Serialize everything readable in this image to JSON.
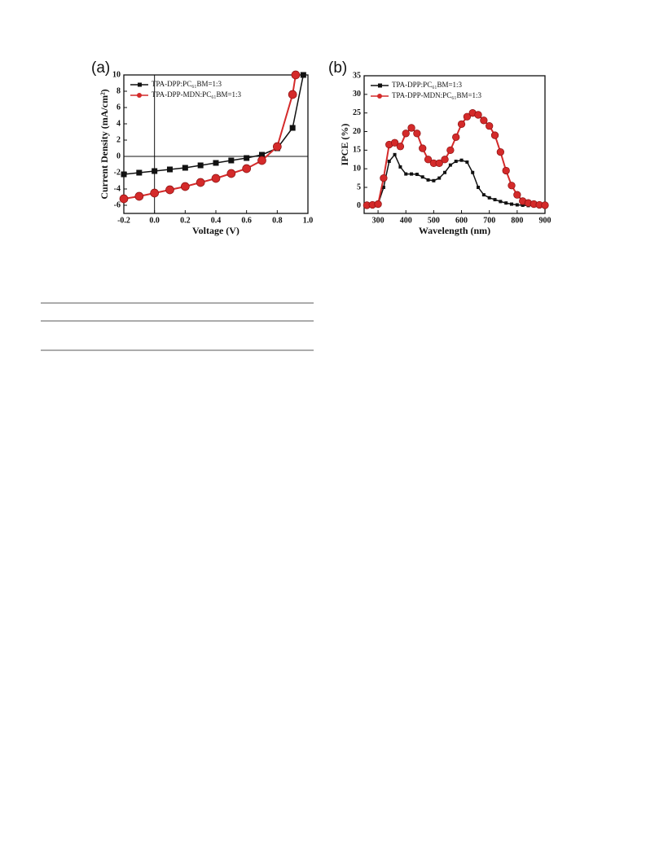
{
  "chart_data": [
    {
      "type": "line",
      "title": "(a)",
      "x_label": "Voltage (V)",
      "y_label": "Current Density (mA/cm²)",
      "xlim": [
        -0.2,
        1.0
      ],
      "ylim": [
        -7,
        10
      ],
      "xticks": [
        -0.2,
        {
          "value": 0,
          "label": "0.0"
        },
        0.2,
        0.4,
        0.6,
        0.8,
        {
          "value": 1,
          "label": "1.0"
        }
      ],
      "yticks": [
        -6,
        -4,
        -2,
        0,
        2,
        4,
        6,
        8,
        10
      ],
      "legend": "upper left",
      "series": [
        {
          "name": "TPA-DPP:PC₆₁BM=1:3",
          "color": "#111111",
          "marker": "square",
          "x": [
            -0.2,
            -0.1,
            0,
            0.1,
            0.2,
            0.3,
            0.4,
            0.5,
            0.6,
            0.7,
            0.8,
            0.9,
            0.97
          ],
          "values": [
            -2.2,
            -2.0,
            -1.8,
            -1.6,
            -1.4,
            -1.1,
            -0.8,
            -0.5,
            -0.2,
            0.2,
            1.0,
            3.5,
            10
          ]
        },
        {
          "name": "TPA-DPP-MDN:PC₆₁BM=1:3",
          "color": "#d42a2a",
          "marker": "circle",
          "x": [
            -0.2,
            -0.1,
            0,
            0.1,
            0.2,
            0.3,
            0.4,
            0.5,
            0.6,
            0.7,
            0.8,
            0.9,
            0.92
          ],
          "values": [
            -5.2,
            -4.9,
            -4.5,
            -4.1,
            -3.7,
            -3.2,
            -2.7,
            -2.1,
            -1.5,
            -0.5,
            1.2,
            7.6,
            10
          ]
        }
      ]
    },
    {
      "type": "line",
      "title": "(b)",
      "x_label": "Wavelength (nm)",
      "y_label": "IPCE (%)",
      "xlim": [
        250,
        900
      ],
      "ylim": [
        -2,
        35
      ],
      "xticks": [
        300,
        400,
        500,
        600,
        700,
        800,
        900
      ],
      "yticks": [
        0,
        5,
        10,
        15,
        20,
        25,
        30,
        35
      ],
      "legend": "upper left",
      "x": [
        260,
        280,
        300,
        320,
        340,
        360,
        380,
        400,
        420,
        440,
        460,
        480,
        500,
        520,
        540,
        560,
        580,
        600,
        620,
        640,
        660,
        680,
        700,
        720,
        740,
        760,
        780,
        800,
        820,
        840,
        860,
        880,
        900
      ],
      "series": [
        {
          "name": "TPA-DPP:PC₆₁BM=1:3",
          "color": "#111111",
          "marker": "square",
          "values": [
            0.1,
            0.2,
            0.5,
            5,
            12,
            13.8,
            10.5,
            8.6,
            8.6,
            8.5,
            7.8,
            7,
            6.8,
            7.5,
            9,
            11,
            12,
            12.3,
            11.8,
            9,
            5,
            3,
            2.2,
            1.7,
            1.2,
            0.8,
            0.5,
            0.3,
            0.2,
            0.1,
            0.1,
            0,
            0
          ]
        },
        {
          "name": "TPA-DPP-MDN:PC₆₁BM=1:3",
          "color": "#d42a2a",
          "marker": "circle",
          "values": [
            0.2,
            0.3,
            0.5,
            7.5,
            16.5,
            17,
            16,
            19.5,
            21,
            19.5,
            15.5,
            12.5,
            11.5,
            11.5,
            12.5,
            15,
            18.5,
            22,
            24,
            25,
            24.5,
            23,
            21.5,
            19,
            14.5,
            9.5,
            5.5,
            3,
            1.3,
            0.8,
            0.5,
            0.3,
            0.2
          ]
        }
      ]
    }
  ]
}
